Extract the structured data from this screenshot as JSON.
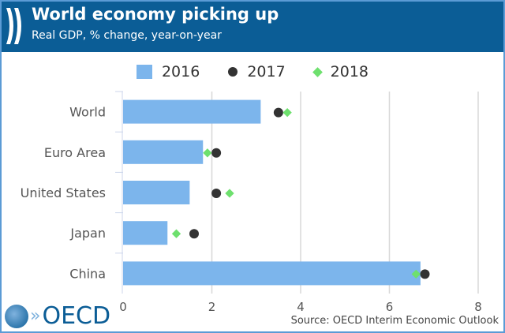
{
  "header": {
    "title": "World economy picking up",
    "subtitle": "Real GDP, % change, year-on-year"
  },
  "footer": {
    "source": "Source: OECD Interim Economic Outlook",
    "logo_text": "OECD"
  },
  "chart_data": {
    "type": "bar",
    "title": "World economy picking up",
    "subtitle": "Real GDP, % change, year-on-year",
    "categories": [
      "World",
      "Euro Area",
      "United States",
      "Japan",
      "China"
    ],
    "series": [
      {
        "name": "2016",
        "kind": "bar",
        "color": "#7cb5ec",
        "values": [
          3.1,
          1.8,
          1.5,
          1.0,
          6.7
        ]
      },
      {
        "name": "2017",
        "kind": "dot",
        "color": "#333333",
        "values": [
          3.5,
          2.1,
          2.1,
          1.6,
          6.8
        ]
      },
      {
        "name": "2018",
        "kind": "diamond",
        "color": "#6ee06e",
        "values": [
          3.7,
          1.9,
          2.4,
          1.2,
          6.6
        ]
      }
    ],
    "xlim": [
      0,
      8
    ],
    "xticks": [
      "0",
      "2",
      "4",
      "6",
      "8"
    ],
    "grid": true,
    "legend": "top",
    "orientation": "horizontal"
  }
}
